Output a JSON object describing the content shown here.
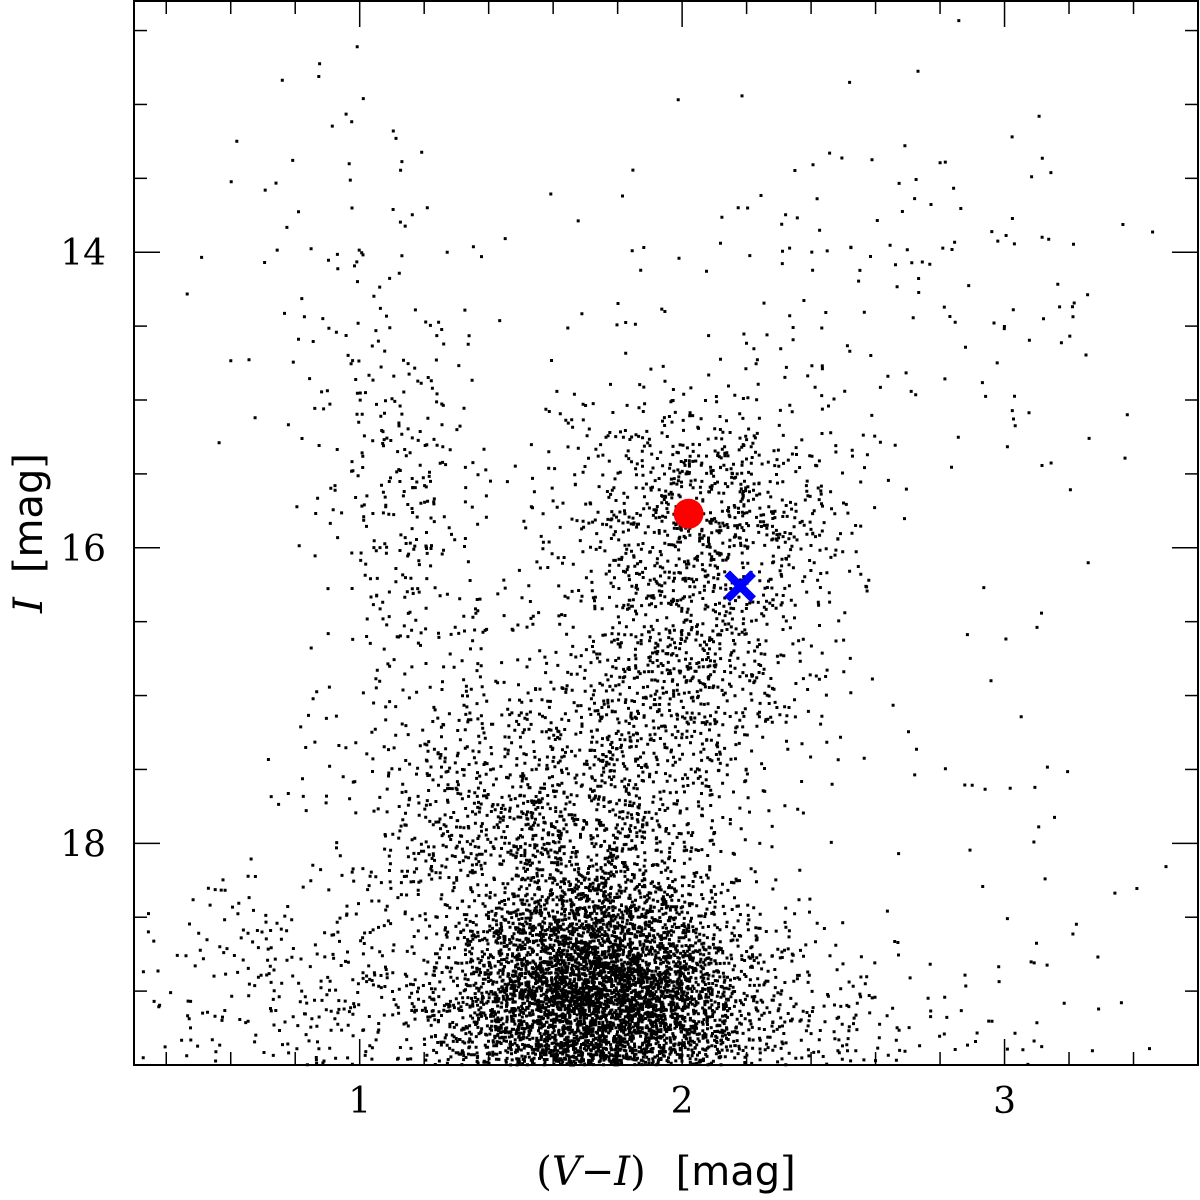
{
  "chart_data": {
    "type": "scatter",
    "title": "",
    "xlabel": {
      "parts": [
        "(",
        "V",
        "−",
        "I",
        ")"
      ],
      "unit": "mag"
    },
    "ylabel": {
      "symbol": "I",
      "unit": "mag"
    },
    "xlim": [
      0.3,
      3.6
    ],
    "ylim": [
      19.5,
      12.3
    ],
    "y_inverted": true,
    "x_major_ticks": [
      1,
      2,
      3
    ],
    "x_minor_ticks": [
      0.4,
      0.6,
      0.8,
      1.2,
      1.4,
      1.6,
      1.8,
      2.2,
      2.4,
      2.6,
      2.8,
      3.2,
      3.4
    ],
    "y_major_ticks": [
      14,
      16,
      18
    ],
    "y_minor_ticks": [
      12.5,
      13,
      13.5,
      14.5,
      15,
      15.5,
      16.5,
      17,
      17.5,
      18.5,
      19
    ],
    "x_tick_labels": [
      "1",
      "2",
      "3"
    ],
    "y_tick_labels": [
      "14",
      "16",
      "18"
    ],
    "grid": false,
    "legend": "none",
    "background_stars": {
      "description_of_distribution": "field-star color-magnitude density components",
      "components": [
        {
          "name": "main-sequence-turnoff-clump",
          "cx": 1.75,
          "cy": 19.05,
          "sx": 0.22,
          "sy": 0.42,
          "count": 5200
        },
        {
          "name": "upper-main-sequence",
          "cx": 1.55,
          "cy": 17.9,
          "sx": 0.3,
          "sy": 0.55,
          "count": 1400
        },
        {
          "name": "faint-wide-spread",
          "cx": 1.8,
          "cy": 19.2,
          "sx": 0.55,
          "sy": 0.3,
          "count": 900
        },
        {
          "name": "red-clump-region",
          "cx": 2.05,
          "cy": 15.8,
          "sx": 0.24,
          "sy": 0.45,
          "count": 950
        },
        {
          "name": "red-giant-branch",
          "cx": 2.0,
          "cy": 16.9,
          "sx": 0.2,
          "sy": 0.45,
          "count": 700
        },
        {
          "name": "blue-plume",
          "cx": 1.15,
          "cy": 15.8,
          "sx": 0.14,
          "sy": 0.8,
          "count": 300
        },
        {
          "name": "bright-blue-sparse",
          "cx": 0.95,
          "cy": 14.3,
          "sx": 0.18,
          "sy": 0.9,
          "count": 90
        },
        {
          "name": "bright-red-giants",
          "cx": 2.6,
          "cy": 14.3,
          "sx": 0.45,
          "sy": 0.6,
          "count": 160
        },
        {
          "name": "very-red-sparse",
          "cx": 3.05,
          "cy": 17.5,
          "sx": 0.2,
          "sy": 1.3,
          "count": 40
        },
        {
          "name": "blue-faint-tail",
          "cx": 0.8,
          "cy": 19.0,
          "sx": 0.25,
          "sy": 0.4,
          "count": 200
        }
      ],
      "color": "#000000"
    },
    "highlighted_points": [
      {
        "marker": "filled-circle",
        "x": 2.02,
        "y": 15.77,
        "color": "#ff0000"
      },
      {
        "marker": "cross",
        "x": 2.18,
        "y": 16.26,
        "color": "#0000ff"
      }
    ]
  }
}
